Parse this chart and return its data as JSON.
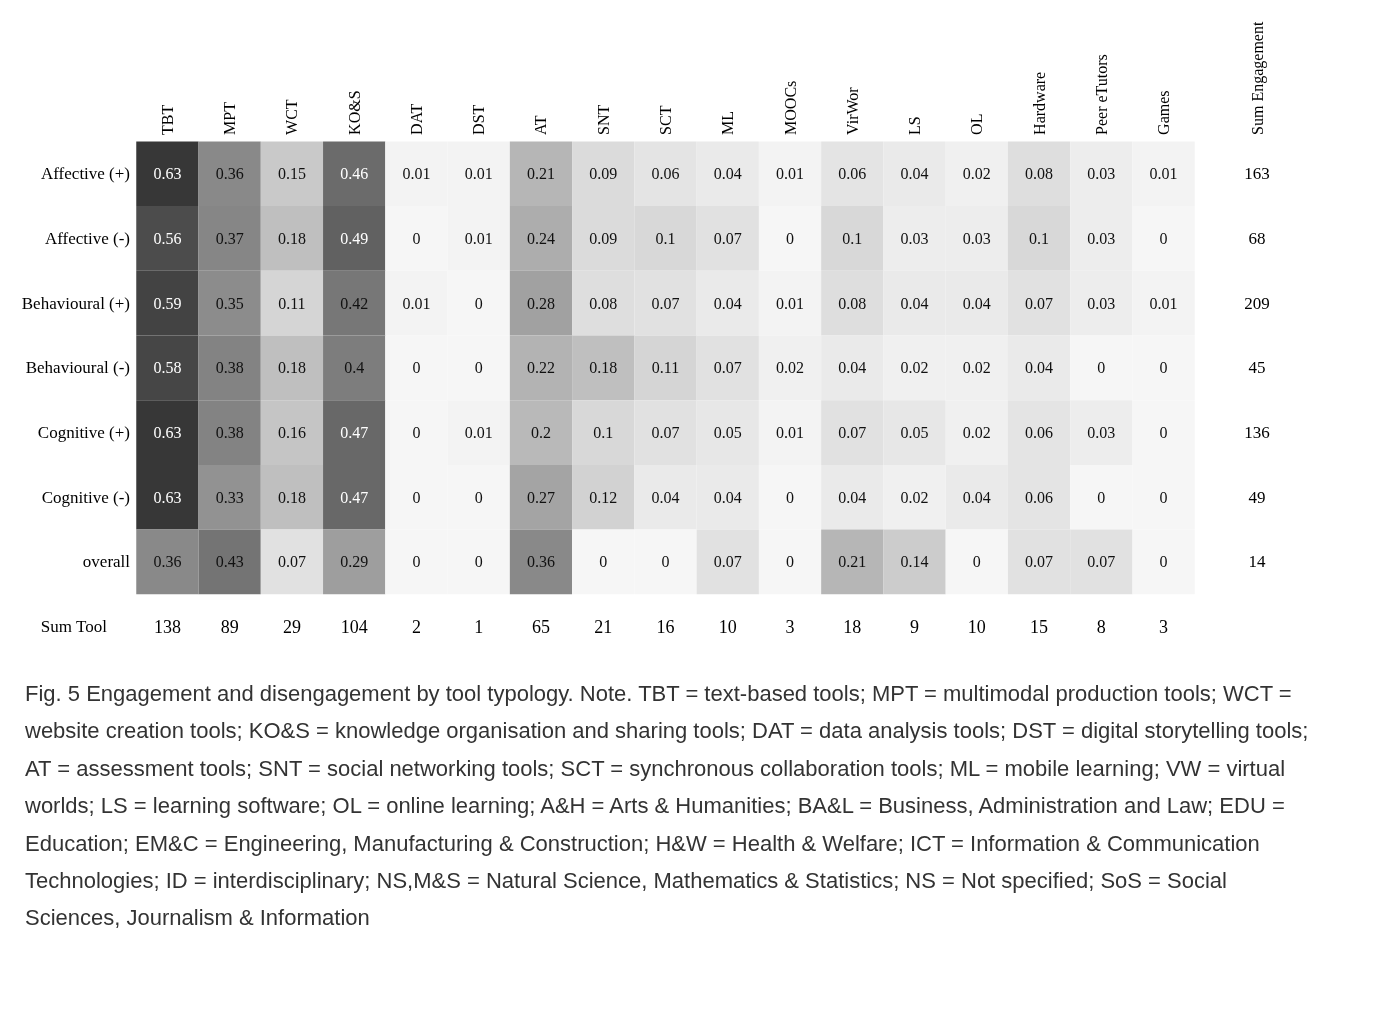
{
  "chart_data": {
    "type": "heatmap",
    "categories": [
      "TBT",
      "MPT",
      "WCT",
      "KO&S",
      "DAT",
      "DST",
      "AT",
      "SNT",
      "SCT",
      "ML",
      "MOOCs",
      "VirWor",
      "LS",
      "OL",
      "Hardware",
      "Peer eTutors",
      "Games"
    ],
    "y_categories": [
      "Affective (+)",
      "Affective (-)",
      "Behavioural (+)",
      "Behavioural (-)",
      "Cognitive (+)",
      "Cognitive (-)",
      "overall"
    ],
    "y2_categories": [
      "163",
      "68",
      "209",
      "45",
      "136",
      "49",
      "14"
    ],
    "y2label": "Sum Engagement",
    "cells": [
      [
        0.63,
        0.36,
        0.15,
        0.46,
        0.01,
        0.01,
        0.21,
        0.09,
        0.06,
        0.04,
        0.01,
        0.06,
        0.04,
        0.02,
        0.08,
        0.03,
        0.01
      ],
      [
        0.56,
        0.37,
        0.18,
        0.49,
        0,
        0.01,
        0.24,
        0.09,
        0.1,
        0.07,
        0,
        0.1,
        0.03,
        0.03,
        0.1,
        0.03,
        0
      ],
      [
        0.59,
        0.35,
        0.11,
        0.42,
        0.01,
        0,
        0.28,
        0.08,
        0.07,
        0.04,
        0.01,
        0.08,
        0.04,
        0.04,
        0.07,
        0.03,
        0.01
      ],
      [
        0.58,
        0.38,
        0.18,
        0.4,
        0,
        0,
        0.22,
        0.18,
        0.11,
        0.07,
        0.02,
        0.04,
        0.02,
        0.02,
        0.04,
        0,
        0
      ],
      [
        0.63,
        0.38,
        0.16,
        0.47,
        0,
        0.01,
        0.2,
        0.1,
        0.07,
        0.05,
        0.01,
        0.07,
        0.05,
        0.02,
        0.06,
        0.03,
        0
      ],
      [
        0.63,
        0.33,
        0.18,
        0.47,
        0,
        0,
        0.27,
        0.12,
        0.04,
        0.04,
        0,
        0.04,
        0.02,
        0.04,
        0.06,
        0,
        0
      ],
      [
        0.36,
        0.43,
        0.07,
        0.29,
        0,
        0,
        0.36,
        0,
        0,
        0.07,
        0,
        0.21,
        0.14,
        0,
        0.07,
        0.07,
        0
      ]
    ],
    "data_labels": true,
    "annotations": [
      "Fig. 5 Engagement and disengagement by tool typology. Note. TBT = text-based tools; MPT = multimodal production tools; WCT = website creation tools; KO&S = knowledge organisation and sharing tools; DAT = data analysis tools; DST = digital storytelling tools; AT = assessment tools; SNT = social networking tools; SCT = synchronous collaboration tools; ML = mobile learning; VW = virtual worlds; LS = learning software; OL = online learning; A&H = Arts & Humanities; BA&L = Business, Administration and Law; EDU = Education; EM&C = Engineering, Manufacturing & Construction; H&W = Health & Welfare; ICT = Information & Communication Technologies; ID = interdisciplinary; NS,M&S = Natural Science, Mathematics & Statistics; NS = Not specified; SoS = Social Sciences, Journalism & Information",
      "Sum Tool",
      "138",
      "89",
      "29",
      "104",
      "2",
      "1",
      "65",
      "21",
      "16",
      "10",
      "3",
      "18",
      "9",
      "10",
      "15",
      "8",
      "3"
    ]
  }
}
